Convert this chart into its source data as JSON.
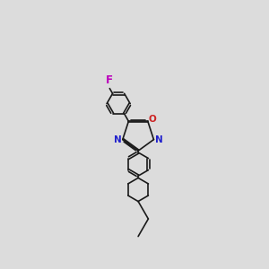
{
  "bg_color": "#dcdcdc",
  "bond_color": "#1a1a1a",
  "N_color": "#2222cc",
  "O_color": "#cc2222",
  "F_color": "#bb00bb",
  "lw": 1.2,
  "dbo": 0.012,
  "xlim": [
    -0.55,
    0.55
  ],
  "ylim": [
    -1.45,
    1.45
  ]
}
